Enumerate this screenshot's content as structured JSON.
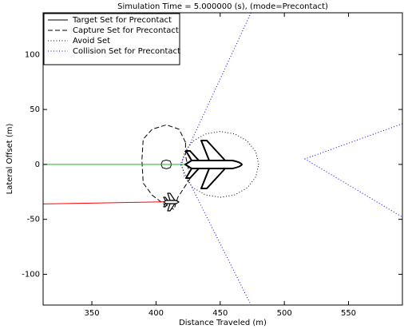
{
  "chart_data": {
    "type": "line",
    "title": "Simulation Time = 5.000000 (s), (mode=Precontact)",
    "x_label": "Distance Traveled (m)",
    "y_label": "Lateral Offset (m)",
    "xlim": [
      312,
      592
    ],
    "ylim": [
      -128,
      138
    ],
    "xticks": [
      350,
      400,
      450,
      500,
      550
    ],
    "yticks": [
      -100,
      -50,
      0,
      50,
      100
    ],
    "legend": "upper left",
    "series": [
      {
        "name": "Target Set for Precontact",
        "color": "#000000",
        "linestyle": "solid",
        "x": [
          412,
          411,
          408,
          405,
          404,
          405,
          408,
          411,
          412
        ],
        "values": [
          0,
          3,
          4,
          3,
          0,
          -3,
          -4,
          -3,
          0
        ]
      },
      {
        "name": "Capture Set for Precontact",
        "color": "#000000",
        "linestyle": "dashed",
        "x": [
          423,
          418,
          408,
          397,
          390,
          389,
          390,
          397,
          406,
          414,
          417,
          422,
          427,
          425,
          423,
          423
        ],
        "values": [
          20,
          32,
          36,
          32,
          23,
          4,
          -17,
          -28,
          -36,
          -41,
          -30,
          -21,
          -12,
          -3,
          8,
          20
        ]
      },
      {
        "name": "Avoid Set",
        "color": "#000000",
        "linestyle": "dotted",
        "x": [
          480,
          477.7,
          471.2,
          461.5,
          450,
          438.5,
          428.8,
          422.3,
          420,
          422.3,
          428.8,
          438.5,
          450,
          461.5,
          471.2,
          477.7,
          480
        ],
        "values": [
          0,
          11.5,
          21.2,
          27.7,
          30,
          27.7,
          21.2,
          11.5,
          0,
          -11.5,
          -21.2,
          -27.7,
          -30,
          -27.7,
          -21.2,
          -11.5,
          0
        ]
      },
      {
        "name": "Collision Set for Precontact",
        "color": "#0000ff",
        "linestyle": "dotted",
        "x": [
          474,
          419,
          474,
          null,
          592,
          516,
          592
        ],
        "values": [
          138,
          0,
          -128,
          null,
          37,
          5,
          -48
        ]
      },
      {
        "color": "#00cc00",
        "linestyle": "solid",
        "x": [
          312,
          425
        ],
        "values": [
          0,
          0
        ]
      },
      {
        "color": "#ff0000",
        "linestyle": "solid",
        "x": [
          312,
          409
        ],
        "values": [
          -36,
          -34
        ]
      }
    ]
  }
}
